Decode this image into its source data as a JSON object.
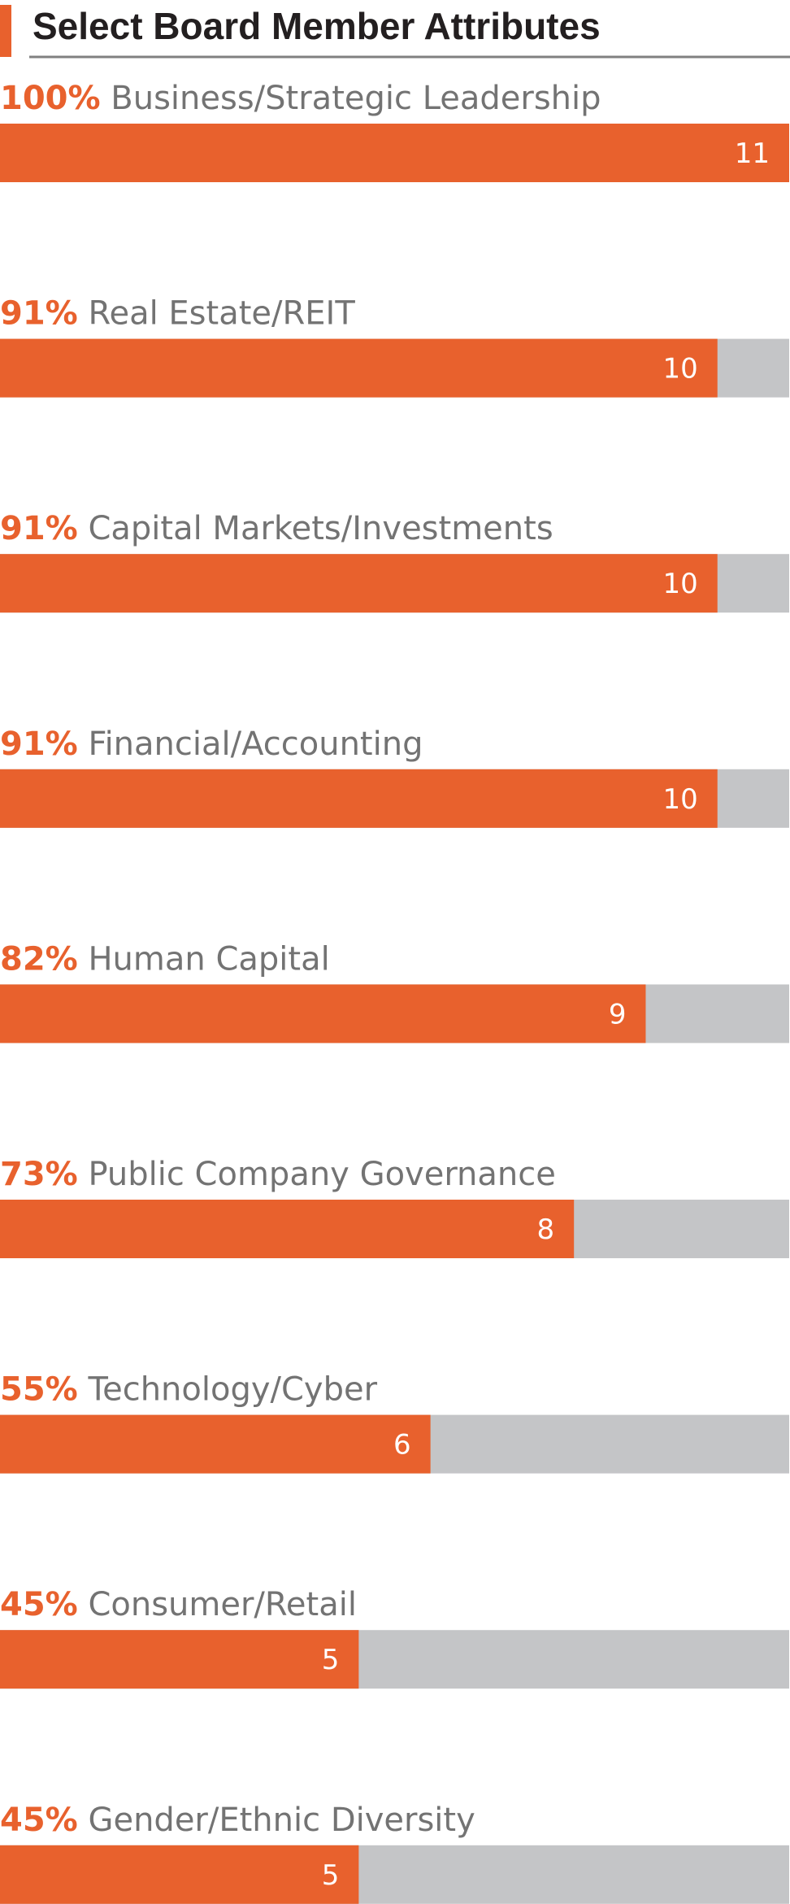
{
  "colors": {
    "accent": "#E8612D",
    "bar_track": "#C4C5C7",
    "title_text": "#231F20",
    "rule": "#808080",
    "label_text": "#737373",
    "value_text": "#FFFFFF"
  },
  "chart_data": {
    "type": "bar",
    "orientation": "horizontal",
    "title": "Select Board Member Attributes",
    "max_value": 11,
    "categories": [
      "Business/Strategic Leadership",
      "Real Estate/REIT",
      "Capital Markets/Investments",
      "Financial/Accounting",
      "Human Capital",
      "Public Company Governance",
      "Technology/Cyber",
      "Consumer/Retail",
      "Gender/Ethnic Diversity"
    ],
    "percent_labels": [
      "100%",
      "91%",
      "91%",
      "91%",
      "82%",
      "73%",
      "55%",
      "45%",
      "45%"
    ],
    "values": [
      11,
      10,
      10,
      10,
      9,
      8,
      6,
      5,
      5
    ]
  }
}
